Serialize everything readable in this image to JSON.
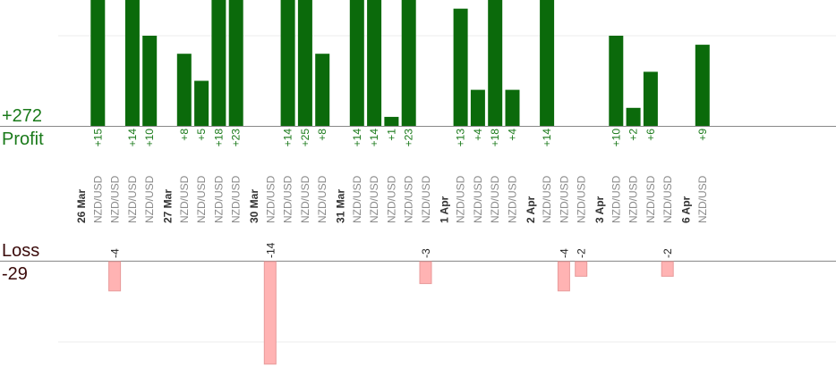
{
  "summary": {
    "profit_label": "Profit",
    "profit_total": "+272",
    "loss_label": "Loss",
    "loss_total": "-29"
  },
  "colors": {
    "profit_bar": "#0b6a0b",
    "profit_text": "#1a7a1a",
    "loss_bar": "#ffb3b3",
    "loss_border": "#e89a9a",
    "loss_text": "#222222",
    "pair_text": "#8a8a8a",
    "date_text": "#333333",
    "grid": "#eeeeee",
    "axis": "#888888"
  },
  "chart_data": {
    "type": "bar",
    "description_free": true,
    "profit_axis_range": [
      0,
      50
    ],
    "loss_axis_range": [
      -15,
      0
    ],
    "date_labels": [
      "26 Mar",
      "27 Mar",
      "30 Mar",
      "31 Mar",
      "1 Apr",
      "2 Apr",
      "3 Apr",
      "6 Apr"
    ],
    "groups": [
      {
        "date": "26 Mar",
        "trades": [
          {
            "pair": "NZD/USD",
            "profit": "+15",
            "value": 15
          },
          {
            "pair": "NZD/USD",
            "loss": "-4",
            "value": -4
          },
          {
            "pair": "NZD/USD",
            "profit": "+14",
            "value": 14
          },
          {
            "pair": "NZD/USD",
            "profit": "+10",
            "value": 10
          }
        ]
      },
      {
        "date": "27 Mar",
        "trades": [
          {
            "pair": "NZD/USD",
            "profit": "+8",
            "value": 8
          },
          {
            "pair": "NZD/USD",
            "profit": "+5",
            "value": 5
          },
          {
            "pair": "NZD/USD",
            "profit": "+18",
            "value": 18
          },
          {
            "pair": "NZD/USD",
            "profit": "+23",
            "value": 23
          }
        ]
      },
      {
        "date": "30 Mar",
        "trades": [
          {
            "pair": "NZD/USD",
            "loss": "-14",
            "value": -14
          },
          {
            "pair": "NZD/USD",
            "profit": "+14",
            "value": 14
          },
          {
            "pair": "NZD/USD",
            "profit": "+25",
            "value": 25
          },
          {
            "pair": "NZD/USD",
            "profit": "+8",
            "value": 8
          }
        ]
      },
      {
        "date": "31 Mar",
        "trades": [
          {
            "pair": "NZD/USD",
            "profit": "+14",
            "value": 14
          },
          {
            "pair": "NZD/USD",
            "profit": "+14",
            "value": 14
          },
          {
            "pair": "NZD/USD",
            "profit": "+1",
            "value": 1
          },
          {
            "pair": "NZD/USD",
            "profit": "+23",
            "value": 23
          },
          {
            "pair": "NZD/USD",
            "loss": "-3",
            "value": -3
          }
        ]
      },
      {
        "date": "1 Apr",
        "trades": [
          {
            "pair": "NZD/USD",
            "profit": "+13",
            "value": 13
          },
          {
            "pair": "NZD/USD",
            "profit": "+4",
            "value": 4
          },
          {
            "pair": "NZD/USD",
            "profit": "+18",
            "value": 18
          },
          {
            "pair": "NZD/USD",
            "profit": "+4",
            "value": 4
          }
        ]
      },
      {
        "date": "2 Apr",
        "trades": [
          {
            "pair": "NZD/USD",
            "profit": "+14",
            "value": 14
          },
          {
            "pair": "NZD/USD",
            "loss": "-4",
            "value": -4
          },
          {
            "pair": "NZD/USD",
            "loss": "-2",
            "value": -2
          }
        ]
      },
      {
        "date": "3 Apr",
        "trades": [
          {
            "pair": "NZD/USD",
            "profit": "+10",
            "value": 10
          },
          {
            "pair": "NZD/USD",
            "profit": "+2",
            "value": 2
          },
          {
            "pair": "NZD/USD",
            "profit": "+6",
            "value": 6
          },
          {
            "pair": "NZD/USD",
            "loss": "-2",
            "value": -2
          }
        ]
      },
      {
        "date": "6 Apr",
        "trades": [
          {
            "pair": "NZD/USD",
            "profit": "+9",
            "value": 9
          }
        ]
      }
    ]
  }
}
